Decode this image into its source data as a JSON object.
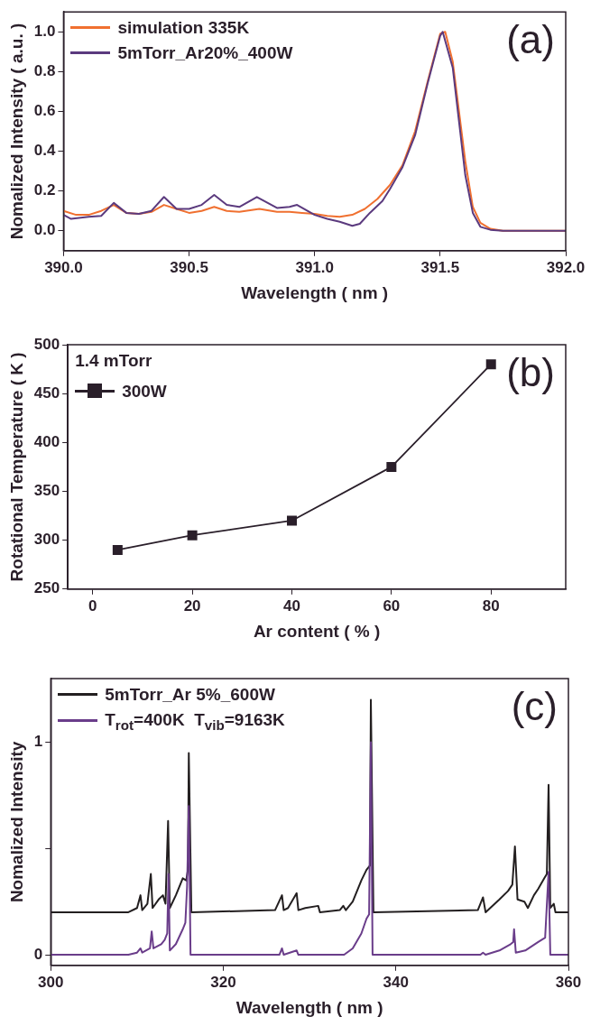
{
  "chart_data": [
    {
      "type": "line",
      "xlabel": "Wavelength ( nm )",
      "ylabel": "Nomalized Intensity ( a.u. )",
      "annotations": [
        "(a)"
      ],
      "legend": "top left",
      "marker": "none",
      "grid": false,
      "xlim": [
        390,
        392
      ],
      "xticks": [
        {
          "value": 390,
          "label": "390.0"
        },
        {
          "value": 390.5,
          "label": "390.5"
        },
        {
          "value": 391,
          "label": "391.0"
        },
        {
          "value": 391.5,
          "label": "391.5"
        },
        {
          "value": 392,
          "label": "392.0"
        }
      ],
      "ylim": [
        -0.1,
        1.1
      ],
      "yticks": [
        {
          "value": 0,
          "label": "0.0"
        },
        {
          "value": 0.2,
          "label": "0.2"
        },
        {
          "value": 0.4,
          "label": "0.4"
        },
        {
          "value": 0.6,
          "label": "0.6"
        },
        {
          "value": 0.8,
          "label": "0.8"
        },
        {
          "value": 1,
          "label": "1.0"
        }
      ],
      "series": [
        {
          "name": "simulation 335K",
          "color": "#f07030",
          "x": [
            390.0,
            390.05,
            390.1,
            390.15,
            390.2,
            390.25,
            390.3,
            390.35,
            390.4,
            390.45,
            390.5,
            390.55,
            390.6,
            390.65,
            390.7,
            390.78,
            390.85,
            390.9,
            390.95,
            391.0,
            391.05,
            391.1,
            391.15,
            391.2,
            391.25,
            391.3,
            391.35,
            391.4,
            391.45,
            391.5,
            391.52,
            391.55,
            391.6,
            391.63,
            391.66,
            391.7,
            391.75,
            392.0
          ],
          "values": [
            0.1,
            0.08,
            0.08,
            0.1,
            0.13,
            0.09,
            0.085,
            0.095,
            0.13,
            0.11,
            0.09,
            0.1,
            0.12,
            0.1,
            0.095,
            0.11,
            0.095,
            0.095,
            0.09,
            0.085,
            0.075,
            0.07,
            0.08,
            0.11,
            0.16,
            0.23,
            0.33,
            0.5,
            0.75,
            0.99,
            1.0,
            0.85,
            0.35,
            0.12,
            0.04,
            0.01,
            0.0,
            0.0
          ]
        },
        {
          "name": "5mTorr_Ar20%_400W",
          "color": "#5b3a7e",
          "x": [
            390.0,
            390.03,
            390.1,
            390.15,
            390.2,
            390.25,
            390.3,
            390.35,
            390.4,
            390.45,
            390.5,
            390.55,
            390.6,
            390.65,
            390.7,
            390.77,
            390.85,
            390.9,
            390.93,
            391.0,
            391.05,
            391.1,
            391.15,
            391.18,
            391.22,
            391.27,
            391.3,
            391.35,
            391.4,
            391.45,
            391.5,
            391.51,
            391.55,
            391.6,
            391.63,
            391.66,
            391.7,
            391.75,
            392.0
          ],
          "values": [
            0.08,
            0.06,
            0.07,
            0.075,
            0.14,
            0.09,
            0.085,
            0.1,
            0.17,
            0.11,
            0.11,
            0.13,
            0.18,
            0.13,
            0.12,
            0.17,
            0.115,
            0.12,
            0.13,
            0.08,
            0.06,
            0.045,
            0.025,
            0.035,
            0.09,
            0.15,
            0.21,
            0.32,
            0.48,
            0.74,
            0.98,
            1.0,
            0.82,
            0.28,
            0.09,
            0.02,
            0.005,
            0.0,
            0.0
          ]
        }
      ]
    },
    {
      "type": "line",
      "xlabel": "Ar content ( % )",
      "ylabel": "Rotational Temperature ( K )",
      "annotations": [
        "(b)"
      ],
      "legend": "top left",
      "legend_title": "1.4 mTorr",
      "marker": "square",
      "grid": false,
      "xlim": [
        -5,
        95
      ],
      "xticks": [
        0,
        20,
        40,
        60,
        80
      ],
      "ylim": [
        250,
        500
      ],
      "yticks": [
        250,
        300,
        350,
        400,
        450,
        500
      ],
      "series": [
        {
          "name": "300W",
          "color": "#2a1f2a",
          "x": [
            5,
            20,
            40,
            60,
            80
          ],
          "values": [
            290,
            305,
            320,
            375,
            480
          ]
        }
      ]
    },
    {
      "type": "line",
      "xlabel": "Wavelength ( nm )",
      "ylabel": "Nomalized Intensity",
      "annotations": [
        "(c)"
      ],
      "legend": "top left",
      "marker": "none",
      "grid": false,
      "xlim": [
        300,
        360
      ],
      "xticks": [
        300,
        320,
        340,
        360
      ],
      "ylim": [
        -0.05,
        1.3
      ],
      "yticks": [
        0,
        {
          "value": 0.5,
          "label": null
        },
        1
      ],
      "series": [
        {
          "name": "5mTorr_Ar 5%_600W",
          "color": "#231f20",
          "x": [
            300,
            309,
            310,
            310.4,
            310.6,
            311.2,
            311.6,
            311.8,
            312.5,
            313,
            313.3,
            313.6,
            313.8,
            314.5,
            315.3,
            315.7,
            315.9,
            316.0,
            316.3,
            326,
            326.8,
            327,
            327.5,
            328.5,
            328.7,
            329.5,
            331,
            331.2,
            333.5,
            333.9,
            334.2,
            335,
            336,
            336.6,
            337.0,
            337.1,
            337.4,
            349.5,
            350.1,
            350.4,
            352,
            353,
            353.5,
            353.8,
            354.1,
            354.9,
            355.3,
            356,
            356.5,
            357.2,
            357.5,
            357.7,
            357.9,
            358.3,
            358.5,
            360
          ],
          "values": [
            0.2,
            0.2,
            0.22,
            0.28,
            0.21,
            0.24,
            0.38,
            0.22,
            0.26,
            0.28,
            0.24,
            0.63,
            0.22,
            0.28,
            0.36,
            0.35,
            0.4,
            0.95,
            0.2,
            0.21,
            0.28,
            0.21,
            0.22,
            0.29,
            0.21,
            0.22,
            0.23,
            0.2,
            0.21,
            0.23,
            0.21,
            0.25,
            0.35,
            0.4,
            0.42,
            1.2,
            0.2,
            0.21,
            0.27,
            0.2,
            0.26,
            0.3,
            0.33,
            0.51,
            0.26,
            0.25,
            0.22,
            0.28,
            0.31,
            0.36,
            0.38,
            0.8,
            0.22,
            0.24,
            0.2,
            0.2
          ]
        },
        {
          "name": "T$_{rot}$=400K  T$_{vib}$=9163K",
          "color": "#6a3d8a",
          "x": [
            300,
            309,
            310,
            310.4,
            310.6,
            311.5,
            311.7,
            311.9,
            312.8,
            313.2,
            313.5,
            313.65,
            313.8,
            314.5,
            315.3,
            315.6,
            315.8,
            316.0,
            316.2,
            326.5,
            326.8,
            327,
            328.5,
            328.7,
            334,
            335,
            336,
            336.6,
            336.9,
            337.1,
            337.3,
            349.8,
            350.1,
            350.4,
            352,
            353.3,
            353.6,
            353.7,
            353.9,
            355,
            356.5,
            357.3,
            357.7,
            357.9,
            360
          ],
          "values": [
            0,
            0,
            0.01,
            0.03,
            0.01,
            0.03,
            0.11,
            0.03,
            0.05,
            0.07,
            0.1,
            0.38,
            0.02,
            0.05,
            0.12,
            0.15,
            0.32,
            0.7,
            0,
            0,
            0.03,
            0,
            0.02,
            0,
            0,
            0.03,
            0.1,
            0.17,
            0.19,
            1.0,
            0,
            0,
            0.01,
            0,
            0.02,
            0.05,
            0.06,
            0.12,
            0.01,
            0.02,
            0.06,
            0.08,
            0.39,
            0,
            0
          ]
        }
      ]
    }
  ]
}
